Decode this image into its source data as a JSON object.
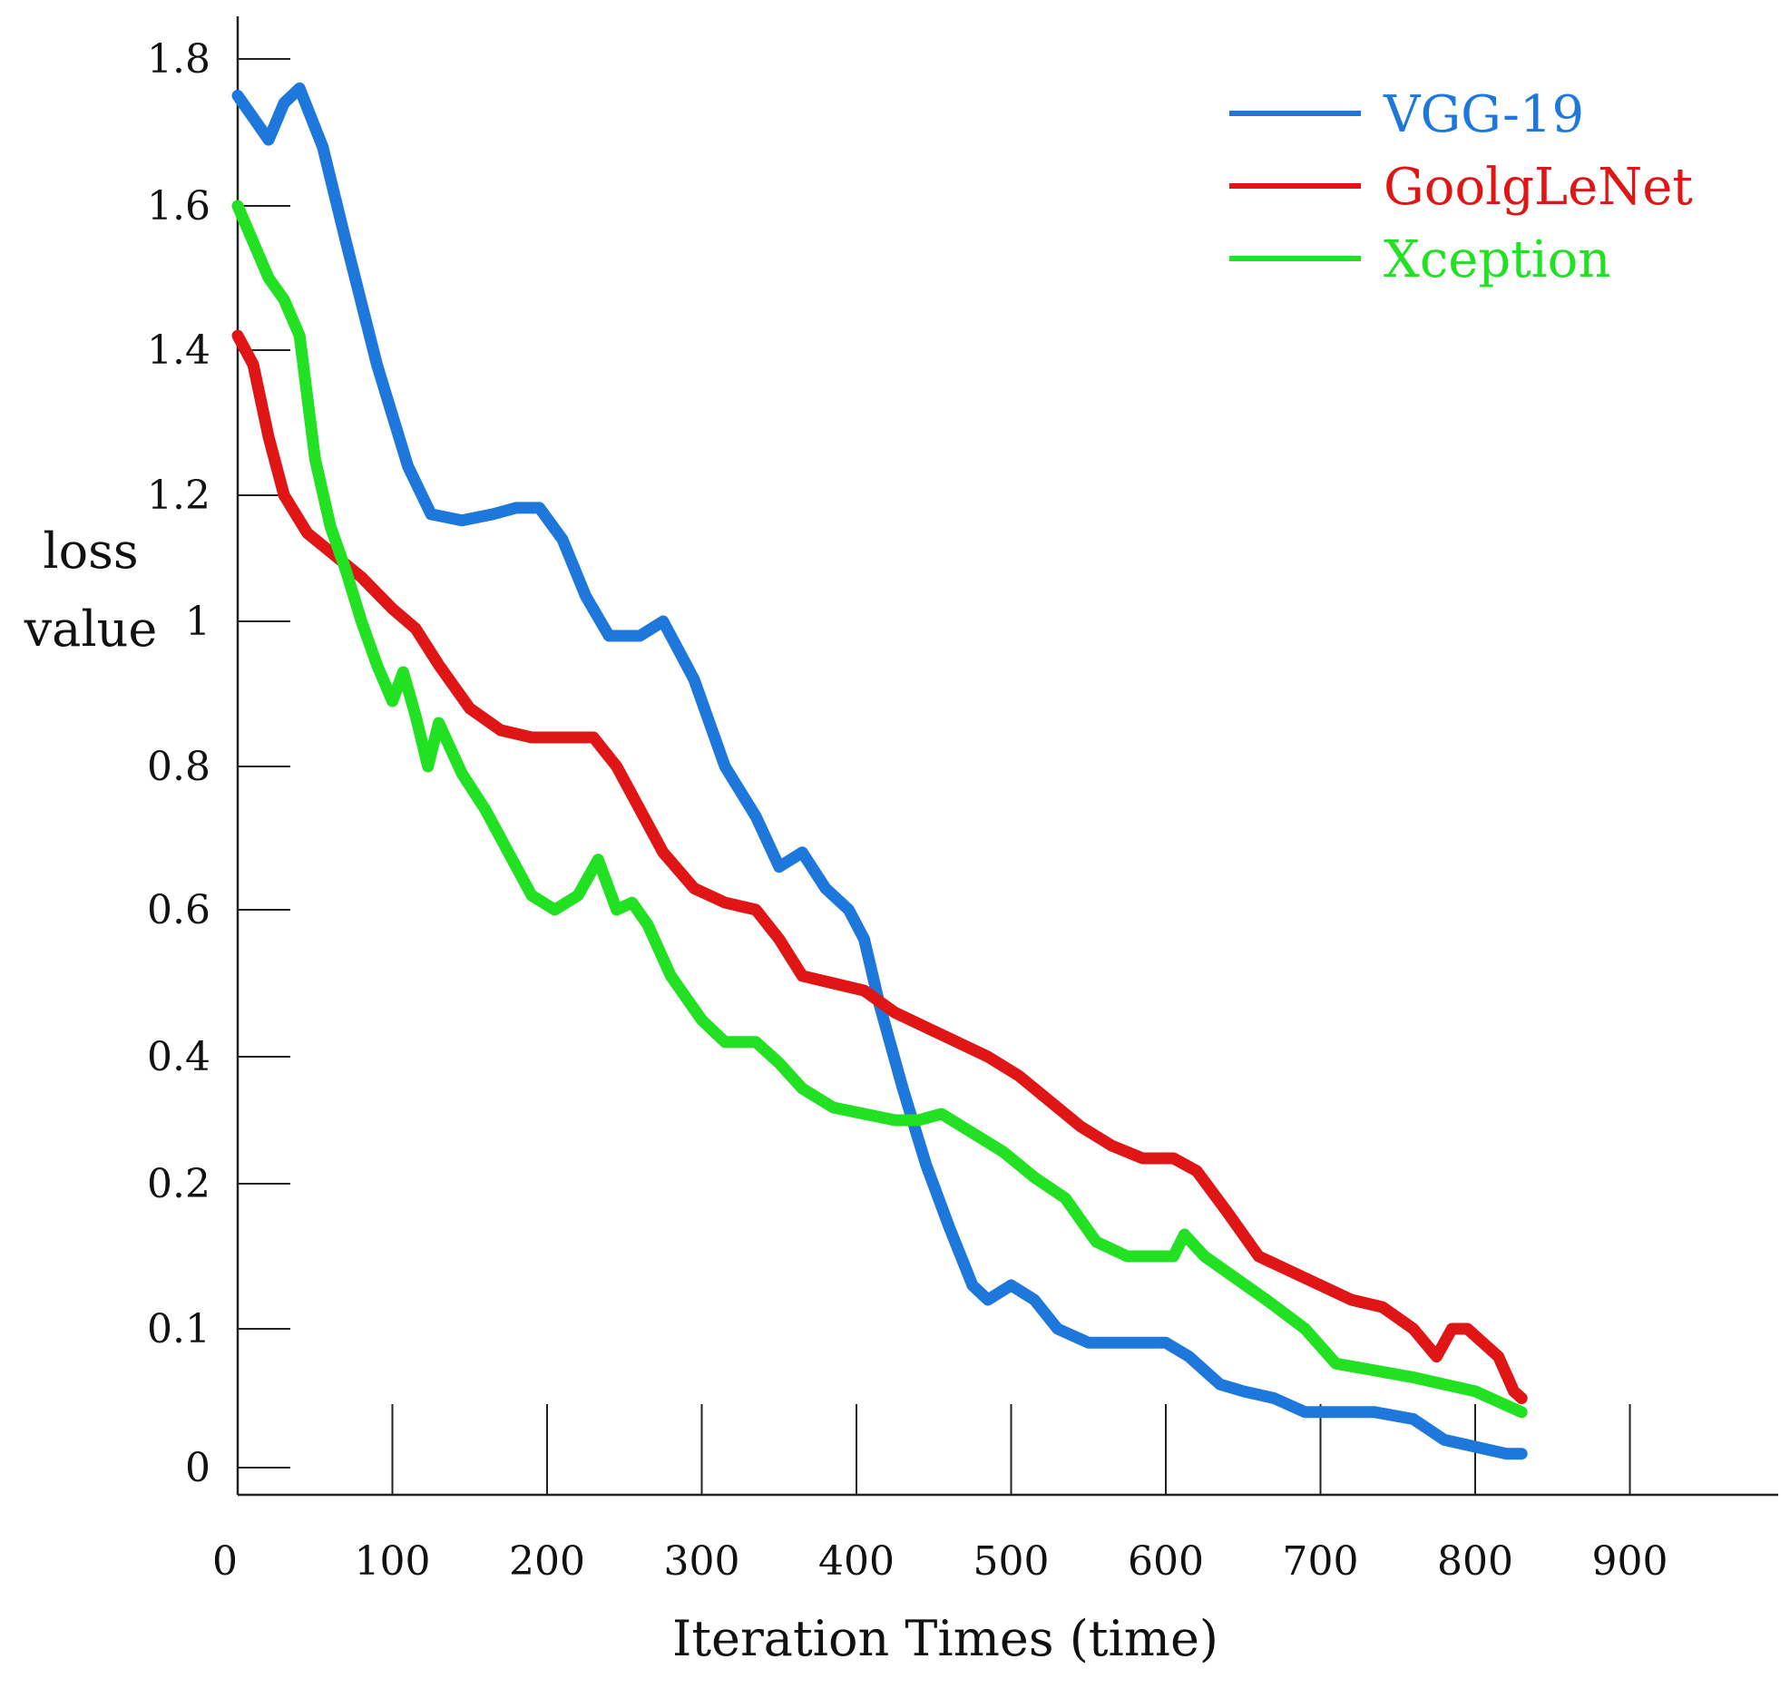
{
  "chart_data": {
    "type": "line",
    "title": "",
    "xlabel": "Iteration Times (time)",
    "ylabel_lines": [
      "loss",
      "value"
    ],
    "x_ticks": [
      {
        "value": 0,
        "label": "0"
      },
      {
        "value": 100,
        "label": "100"
      },
      {
        "value": 200,
        "label": "200"
      },
      {
        "value": 300,
        "label": "300"
      },
      {
        "value": 400,
        "label": "400"
      },
      {
        "value": 500,
        "label": "500"
      },
      {
        "value": 600,
        "label": "600"
      },
      {
        "value": 700,
        "label": "700"
      },
      {
        "value": 800,
        "label": "800"
      },
      {
        "value": 900,
        "label": "900"
      }
    ],
    "y_ticks": [
      {
        "value": 0,
        "label": "0"
      },
      {
        "value": 0.1,
        "label": "0.1"
      },
      {
        "value": 0.2,
        "label": "0.2"
      },
      {
        "value": 0.4,
        "label": "0.4"
      },
      {
        "value": 0.6,
        "label": "0.6"
      },
      {
        "value": 0.8,
        "label": "0.8"
      },
      {
        "value": 1,
        "label": "1"
      },
      {
        "value": 1.2,
        "label": "1.2"
      },
      {
        "value": 1.4,
        "label": "1.4"
      },
      {
        "value": 1.6,
        "label": "1.6"
      },
      {
        "value": 1.8,
        "label": "1.8"
      }
    ],
    "xlim": [
      0,
      1000
    ],
    "ylim": [
      0,
      1.85
    ],
    "grid": false,
    "legend_position": "top-right",
    "series": [
      {
        "name": "VGG-19",
        "color": "#1E78DC",
        "points": [
          [
            0,
            1.75
          ],
          [
            10,
            1.72
          ],
          [
            20,
            1.69
          ],
          [
            30,
            1.74
          ],
          [
            40,
            1.76
          ],
          [
            55,
            1.68
          ],
          [
            70,
            1.55
          ],
          [
            90,
            1.38
          ],
          [
            110,
            1.24
          ],
          [
            125,
            1.17
          ],
          [
            145,
            1.16
          ],
          [
            165,
            1.17
          ],
          [
            180,
            1.18
          ],
          [
            195,
            1.18
          ],
          [
            210,
            1.13
          ],
          [
            225,
            1.04
          ],
          [
            240,
            0.98
          ],
          [
            260,
            0.98
          ],
          [
            275,
            1.0
          ],
          [
            295,
            0.92
          ],
          [
            315,
            0.8
          ],
          [
            335,
            0.73
          ],
          [
            350,
            0.66
          ],
          [
            365,
            0.68
          ],
          [
            380,
            0.63
          ],
          [
            395,
            0.6
          ],
          [
            405,
            0.56
          ],
          [
            415,
            0.47
          ],
          [
            430,
            0.35
          ],
          [
            445,
            0.23
          ],
          [
            460,
            0.17
          ],
          [
            475,
            0.13
          ],
          [
            485,
            0.12
          ],
          [
            500,
            0.13
          ],
          [
            515,
            0.12
          ],
          [
            530,
            0.1
          ],
          [
            550,
            0.09
          ],
          [
            575,
            0.09
          ],
          [
            600,
            0.09
          ],
          [
            615,
            0.08
          ],
          [
            635,
            0.06
          ],
          [
            650,
            0.055
          ],
          [
            670,
            0.05
          ],
          [
            690,
            0.04
          ],
          [
            710,
            0.04
          ],
          [
            735,
            0.04
          ],
          [
            760,
            0.035
          ],
          [
            780,
            0.02
          ],
          [
            800,
            0.015
          ],
          [
            820,
            0.01
          ],
          [
            830,
            0.01
          ]
        ]
      },
      {
        "name": "GoolgLeNet",
        "color": "#E01515",
        "points": [
          [
            0,
            1.42
          ],
          [
            10,
            1.38
          ],
          [
            20,
            1.28
          ],
          [
            30,
            1.2
          ],
          [
            45,
            1.14
          ],
          [
            60,
            1.11
          ],
          [
            80,
            1.07
          ],
          [
            100,
            1.02
          ],
          [
            115,
            0.99
          ],
          [
            130,
            0.94
          ],
          [
            150,
            0.88
          ],
          [
            170,
            0.85
          ],
          [
            190,
            0.84
          ],
          [
            210,
            0.84
          ],
          [
            230,
            0.84
          ],
          [
            245,
            0.8
          ],
          [
            260,
            0.74
          ],
          [
            275,
            0.68
          ],
          [
            295,
            0.63
          ],
          [
            315,
            0.61
          ],
          [
            335,
            0.6
          ],
          [
            350,
            0.56
          ],
          [
            365,
            0.51
          ],
          [
            385,
            0.5
          ],
          [
            405,
            0.49
          ],
          [
            425,
            0.46
          ],
          [
            445,
            0.44
          ],
          [
            465,
            0.42
          ],
          [
            485,
            0.4
          ],
          [
            505,
            0.37
          ],
          [
            525,
            0.33
          ],
          [
            545,
            0.29
          ],
          [
            565,
            0.26
          ],
          [
            585,
            0.24
          ],
          [
            605,
            0.24
          ],
          [
            620,
            0.22
          ],
          [
            640,
            0.18
          ],
          [
            660,
            0.15
          ],
          [
            680,
            0.14
          ],
          [
            700,
            0.13
          ],
          [
            720,
            0.12
          ],
          [
            740,
            0.115
          ],
          [
            760,
            0.1
          ],
          [
            775,
            0.08
          ],
          [
            785,
            0.1
          ],
          [
            795,
            0.1
          ],
          [
            805,
            0.09
          ],
          [
            815,
            0.08
          ],
          [
            825,
            0.055
          ],
          [
            830,
            0.05
          ]
        ]
      },
      {
        "name": "Xception",
        "color": "#22E022",
        "points": [
          [
            0,
            1.6
          ],
          [
            10,
            1.55
          ],
          [
            20,
            1.5
          ],
          [
            30,
            1.47
          ],
          [
            40,
            1.42
          ],
          [
            50,
            1.25
          ],
          [
            60,
            1.15
          ],
          [
            70,
            1.08
          ],
          [
            80,
            1.0
          ],
          [
            90,
            0.94
          ],
          [
            100,
            0.89
          ],
          [
            107,
            0.93
          ],
          [
            115,
            0.87
          ],
          [
            123,
            0.8
          ],
          [
            130,
            0.86
          ],
          [
            145,
            0.79
          ],
          [
            160,
            0.74
          ],
          [
            175,
            0.68
          ],
          [
            190,
            0.62
          ],
          [
            205,
            0.6
          ],
          [
            220,
            0.62
          ],
          [
            233,
            0.67
          ],
          [
            245,
            0.6
          ],
          [
            255,
            0.61
          ],
          [
            265,
            0.58
          ],
          [
            280,
            0.51
          ],
          [
            300,
            0.45
          ],
          [
            315,
            0.42
          ],
          [
            335,
            0.42
          ],
          [
            350,
            0.39
          ],
          [
            365,
            0.35
          ],
          [
            385,
            0.32
          ],
          [
            405,
            0.31
          ],
          [
            425,
            0.3
          ],
          [
            440,
            0.3
          ],
          [
            455,
            0.31
          ],
          [
            475,
            0.28
          ],
          [
            495,
            0.25
          ],
          [
            515,
            0.21
          ],
          [
            535,
            0.19
          ],
          [
            555,
            0.16
          ],
          [
            575,
            0.15
          ],
          [
            595,
            0.15
          ],
          [
            605,
            0.15
          ],
          [
            612,
            0.165
          ],
          [
            625,
            0.15
          ],
          [
            645,
            0.135
          ],
          [
            665,
            0.12
          ],
          [
            690,
            0.1
          ],
          [
            710,
            0.075
          ],
          [
            735,
            0.07
          ],
          [
            760,
            0.065
          ],
          [
            780,
            0.06
          ],
          [
            800,
            0.055
          ],
          [
            820,
            0.045
          ],
          [
            830,
            0.04
          ]
        ]
      }
    ]
  }
}
